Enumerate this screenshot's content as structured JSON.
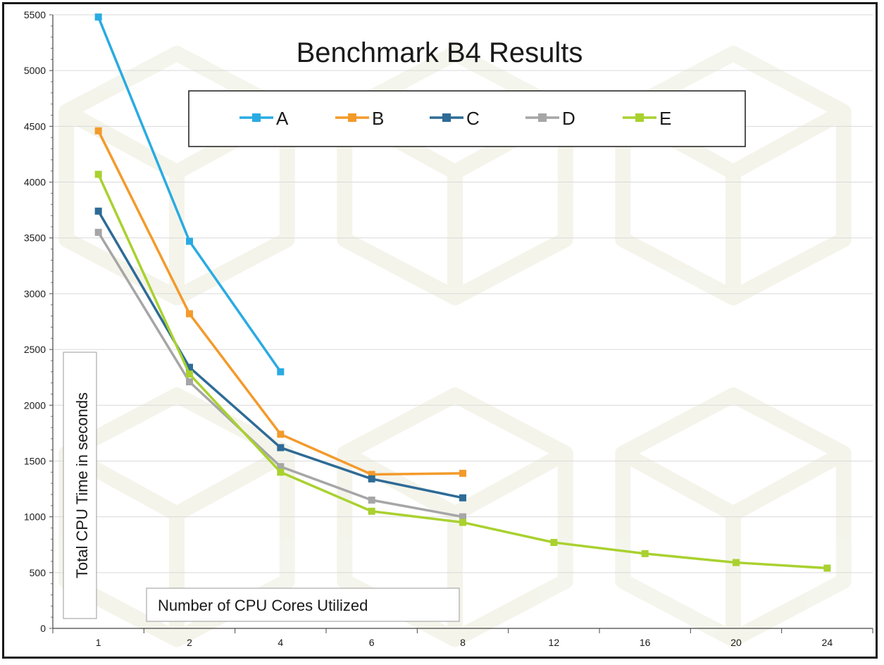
{
  "chart_data": {
    "type": "line",
    "title": "Benchmark B4  Results",
    "xlabel": "Number of CPU Cores Utilized",
    "ylabel": "Total CPU Time in seconds",
    "categories": [
      "1",
      "2",
      "4",
      "6",
      "8",
      "12",
      "16",
      "20",
      "24"
    ],
    "ylim": [
      0,
      5500
    ],
    "yticks": [
      0,
      500,
      1000,
      1500,
      2000,
      2500,
      3000,
      3500,
      4000,
      4500,
      5000,
      5500
    ],
    "grid": true,
    "legend_position": "top",
    "series": [
      {
        "name": "A",
        "color": "#29abe2",
        "values": [
          5480,
          3470,
          2300,
          null,
          null,
          null,
          null,
          null,
          null
        ]
      },
      {
        "name": "B",
        "color": "#f39a2b",
        "values": [
          4460,
          2820,
          1740,
          1380,
          1390,
          null,
          null,
          null,
          null
        ]
      },
      {
        "name": "C",
        "color": "#2e6b96",
        "values": [
          3740,
          2340,
          1620,
          1340,
          1170,
          null,
          null,
          null,
          null
        ]
      },
      {
        "name": "D",
        "color": "#a6a6a6",
        "values": [
          3550,
          2210,
          1450,
          1150,
          1000,
          null,
          null,
          null,
          null
        ]
      },
      {
        "name": "E",
        "color": "#a9d12f",
        "values": [
          4070,
          2280,
          1400,
          1050,
          950,
          770,
          670,
          590,
          540
        ]
      }
    ]
  }
}
